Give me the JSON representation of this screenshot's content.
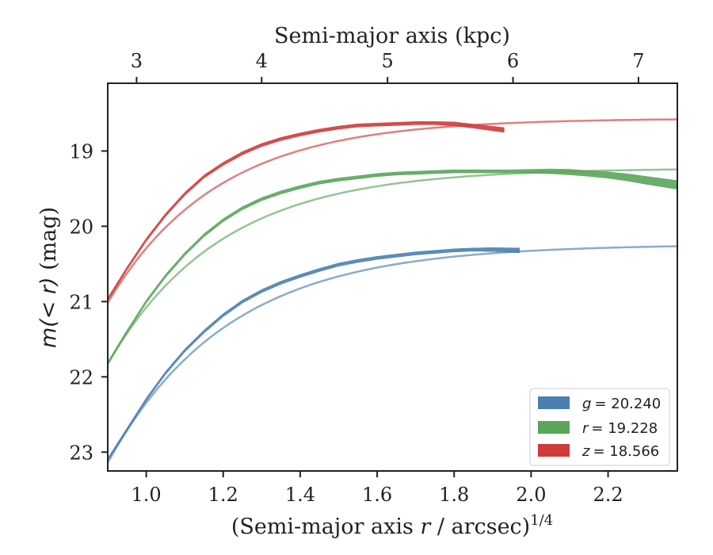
{
  "chart_data": {
    "type": "line",
    "xlabel": "(Semi-major axis r / arcsec)^1/4",
    "xlabel_parts": {
      "pre": "(Semi-major axis ",
      "var": "r",
      "post": " / arcsec)",
      "sup": "1/4"
    },
    "ylabel": "m(< r) (mag)",
    "ylabel_parts": {
      "math": "m(< r)",
      "unit": " (mag)"
    },
    "top_xlabel": "Semi-major axis (kpc)",
    "xlim": [
      0.9,
      2.38
    ],
    "ylim": [
      23.25,
      18.1
    ],
    "y_inverted": true,
    "x_ticks": [
      1.0,
      1.2,
      1.4,
      1.6,
      1.8,
      2.0,
      2.2
    ],
    "x_tick_labels": [
      "1.0",
      "1.2",
      "1.4",
      "1.6",
      "1.8",
      "2.0",
      "2.2"
    ],
    "y_ticks": [
      19,
      20,
      21,
      22,
      23
    ],
    "y_tick_labels": [
      "19",
      "20",
      "21",
      "22",
      "23"
    ],
    "top_ticks_kpc": [
      3,
      4,
      5,
      6,
      7
    ],
    "top_tick_labels": [
      "3",
      "4",
      "5",
      "6",
      "7"
    ],
    "top_ticks_x": [
      0.975,
      1.3,
      1.627,
      1.953,
      2.279
    ],
    "legend_position": "lower-right",
    "series": [
      {
        "name": "g = 20.240",
        "legend_var": "g",
        "legend_value": "= 20.240",
        "color": "#4a7fb0",
        "model": {
          "x": [
            0.9,
            2.38
          ],
          "total": 20.24,
          "a": 2.9,
          "k": 3.2,
          "x0": 0.9
        },
        "observed": {
          "x": [
            0.9,
            0.95,
            1.0,
            1.05,
            1.1,
            1.15,
            1.2,
            1.25,
            1.3,
            1.35,
            1.4,
            1.45,
            1.5,
            1.55,
            1.6,
            1.65,
            1.7,
            1.75,
            1.8,
            1.85,
            1.9,
            1.97
          ],
          "y": [
            23.1,
            22.7,
            22.3,
            21.95,
            21.65,
            21.4,
            21.18,
            21.0,
            20.86,
            20.75,
            20.66,
            20.58,
            20.51,
            20.46,
            20.42,
            20.39,
            20.36,
            20.34,
            20.32,
            20.31,
            20.31,
            20.32
          ],
          "width": [
            4,
            4,
            4,
            4,
            4,
            4,
            4,
            4,
            4,
            4,
            4,
            4,
            4,
            4,
            4,
            4,
            4,
            4,
            4,
            4,
            5,
            6
          ]
        }
      },
      {
        "name": "r = 19.228",
        "legend_var": "r",
        "legend_value": "= 19.228",
        "color": "#5aa55a",
        "model": {
          "x": [
            0.9,
            2.38
          ],
          "total": 19.228,
          "a": 2.6,
          "k": 3.4,
          "x0": 0.9
        },
        "observed": {
          "x": [
            0.9,
            0.95,
            1.0,
            1.05,
            1.1,
            1.15,
            1.2,
            1.25,
            1.3,
            1.35,
            1.4,
            1.45,
            1.5,
            1.55,
            1.6,
            1.65,
            1.7,
            1.75,
            1.8,
            1.85,
            1.9,
            1.95,
            2.0,
            2.05,
            2.1,
            2.15,
            2.2,
            2.25,
            2.3,
            2.38
          ],
          "y": [
            21.82,
            21.4,
            21.0,
            20.66,
            20.37,
            20.12,
            19.92,
            19.76,
            19.64,
            19.55,
            19.48,
            19.42,
            19.38,
            19.35,
            19.32,
            19.3,
            19.29,
            19.28,
            19.27,
            19.27,
            19.27,
            19.27,
            19.27,
            19.27,
            19.28,
            19.3,
            19.32,
            19.35,
            19.39,
            19.45
          ],
          "width": [
            4,
            4,
            4,
            4,
            4,
            4,
            4,
            4,
            4,
            4,
            4,
            4,
            4,
            4,
            4,
            4,
            4,
            4,
            4,
            4,
            4,
            4,
            5,
            6,
            7,
            7,
            8,
            9,
            10,
            11
          ]
        }
      },
      {
        "name": "z = 18.566",
        "legend_var": "z",
        "legend_value": "= 18.566",
        "color": "#d03a3a",
        "model": {
          "x": [
            0.9,
            2.38
          ],
          "total": 18.566,
          "a": 2.45,
          "k": 3.5,
          "x0": 0.9
        },
        "observed": {
          "x": [
            0.9,
            0.95,
            1.0,
            1.05,
            1.1,
            1.15,
            1.2,
            1.25,
            1.3,
            1.35,
            1.4,
            1.45,
            1.5,
            1.55,
            1.6,
            1.65,
            1.7,
            1.75,
            1.8,
            1.85,
            1.93
          ],
          "y": [
            20.97,
            20.56,
            20.18,
            19.85,
            19.57,
            19.34,
            19.17,
            19.03,
            18.92,
            18.84,
            18.78,
            18.73,
            18.69,
            18.66,
            18.65,
            18.64,
            18.63,
            18.63,
            18.64,
            18.67,
            18.72
          ],
          "width": [
            4,
            4,
            4,
            4,
            4,
            4,
            4,
            4,
            4,
            4,
            4,
            4,
            4,
            4,
            4,
            4,
            4,
            4,
            5,
            5,
            6
          ]
        }
      }
    ]
  }
}
